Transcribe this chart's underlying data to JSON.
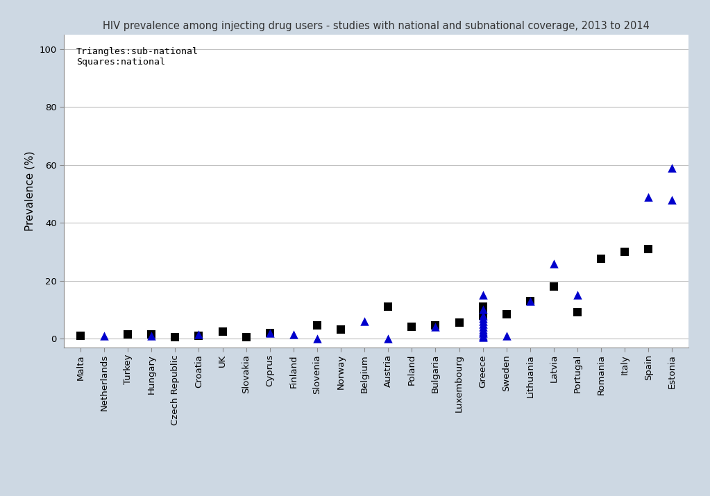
{
  "title": "HIV prevalence among injecting drug users - studies with national and subnational coverage, 2013 to 2014",
  "ylabel": "Prevalence (%)",
  "background_color": "#cdd8e3",
  "plot_bg_color": "#ffffff",
  "ylim": [
    -3,
    105
  ],
  "yticks": [
    0,
    20,
    40,
    60,
    80,
    100
  ],
  "annotation_line1": "Triangles:sub-national",
  "annotation_line2": "Squares:national",
  "countries": [
    "Malta",
    "Netherlands",
    "Turkey",
    "Hungary",
    "Czech Republic",
    "Croatia",
    "UK",
    "Slovakia",
    "Cyprus",
    "Finland",
    "Slovenia",
    "Norway",
    "Belgium",
    "Austria",
    "Poland",
    "Bulgaria",
    "Luxembourg",
    "Greece",
    "Sweden",
    "Lithuania",
    "Latvia",
    "Portugal",
    "Romania",
    "Italy",
    "Spain",
    "Estonia"
  ],
  "national_data": {
    "Malta": [
      1.0
    ],
    "Netherlands": [],
    "Turkey": [
      1.5
    ],
    "Hungary": [
      1.5
    ],
    "Czech Republic": [
      0.5
    ],
    "Croatia": [
      1.0
    ],
    "UK": [
      2.5
    ],
    "Slovakia": [
      0.5
    ],
    "Cyprus": [
      2.0
    ],
    "Finland": [],
    "Slovenia": [
      4.5
    ],
    "Norway": [
      3.0
    ],
    "Belgium": [],
    "Austria": [
      11.0
    ],
    "Poland": [
      4.0
    ],
    "Bulgaria": [
      4.5
    ],
    "Luxembourg": [
      5.5
    ],
    "Greece": [
      8.0,
      9.0,
      9.5,
      10.0,
      10.5,
      11.0
    ],
    "Sweden": [
      8.5
    ],
    "Lithuania": [
      13.0
    ],
    "Latvia": [
      18.0
    ],
    "Portugal": [
      9.0
    ],
    "Romania": [
      27.5
    ],
    "Italy": [
      30.0
    ],
    "Spain": [
      31.0
    ],
    "Estonia": []
  },
  "subnational_data": {
    "Malta": [],
    "Netherlands": [
      1.0
    ],
    "Turkey": [],
    "Hungary": [
      1.0
    ],
    "Czech Republic": [],
    "Croatia": [
      1.5
    ],
    "UK": [],
    "Slovakia": [],
    "Cyprus": [
      2.0
    ],
    "Finland": [
      1.5
    ],
    "Slovenia": [
      0.0
    ],
    "Norway": [],
    "Belgium": [
      6.0
    ],
    "Austria": [
      0.0
    ],
    "Poland": [],
    "Bulgaria": [
      4.0
    ],
    "Luxembourg": [],
    "Greece": [
      0.5,
      1.0,
      2.0,
      2.5,
      3.0,
      4.0,
      5.0,
      6.0,
      7.0,
      8.0,
      10.0,
      15.0
    ],
    "Sweden": [
      1.0
    ],
    "Lithuania": [
      13.0
    ],
    "Latvia": [
      26.0
    ],
    "Portugal": [
      15.0
    ],
    "Romania": [],
    "Italy": [],
    "Spain": [
      49.0
    ],
    "Estonia": [
      48.0,
      59.0
    ]
  },
  "square_color": "#000000",
  "triangle_color": "#0000cc",
  "marker_size": 80,
  "title_color": "#333333",
  "title_fontsize": 10.5,
  "ylabel_fontsize": 11,
  "tick_fontsize": 9.5,
  "grid_color": "#c0c0c0",
  "spine_color": "#888888"
}
